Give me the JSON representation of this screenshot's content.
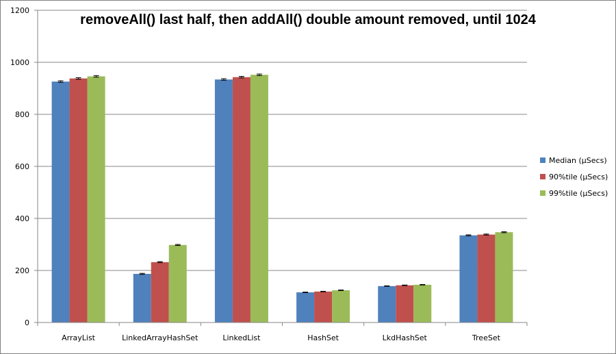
{
  "chart_data": {
    "type": "bar",
    "title": "removeAll() last half, then addAll() double amount removed, until 1024",
    "xlabel": "",
    "ylabel": "",
    "categories": [
      "ArrayList",
      "LinkedArrayHashSet",
      "LinkedList",
      "HashSet",
      "LkdHashSet",
      "TreeSet"
    ],
    "series": [
      {
        "name": "Median (µSecs)",
        "color": "#4f81bd",
        "values": [
          926,
          187,
          934,
          116,
          140,
          335
        ],
        "errors": [
          3,
          2,
          3,
          1,
          1,
          2
        ]
      },
      {
        "name": "90%tile (µSecs)",
        "color": "#c0504d",
        "values": [
          938,
          232,
          943,
          119,
          143,
          338
        ],
        "errors": [
          3,
          2,
          3,
          1,
          1,
          2
        ]
      },
      {
        "name": "99%tile (µSecs)",
        "color": "#9bbb59",
        "values": [
          946,
          298,
          952,
          124,
          145,
          347
        ],
        "errors": [
          3,
          2,
          3,
          1,
          1,
          2
        ]
      }
    ],
    "ylim": [
      0,
      1200
    ],
    "yticks": [
      0,
      200,
      400,
      600,
      800,
      1000,
      1200
    ],
    "grid": true,
    "legend": "right"
  }
}
